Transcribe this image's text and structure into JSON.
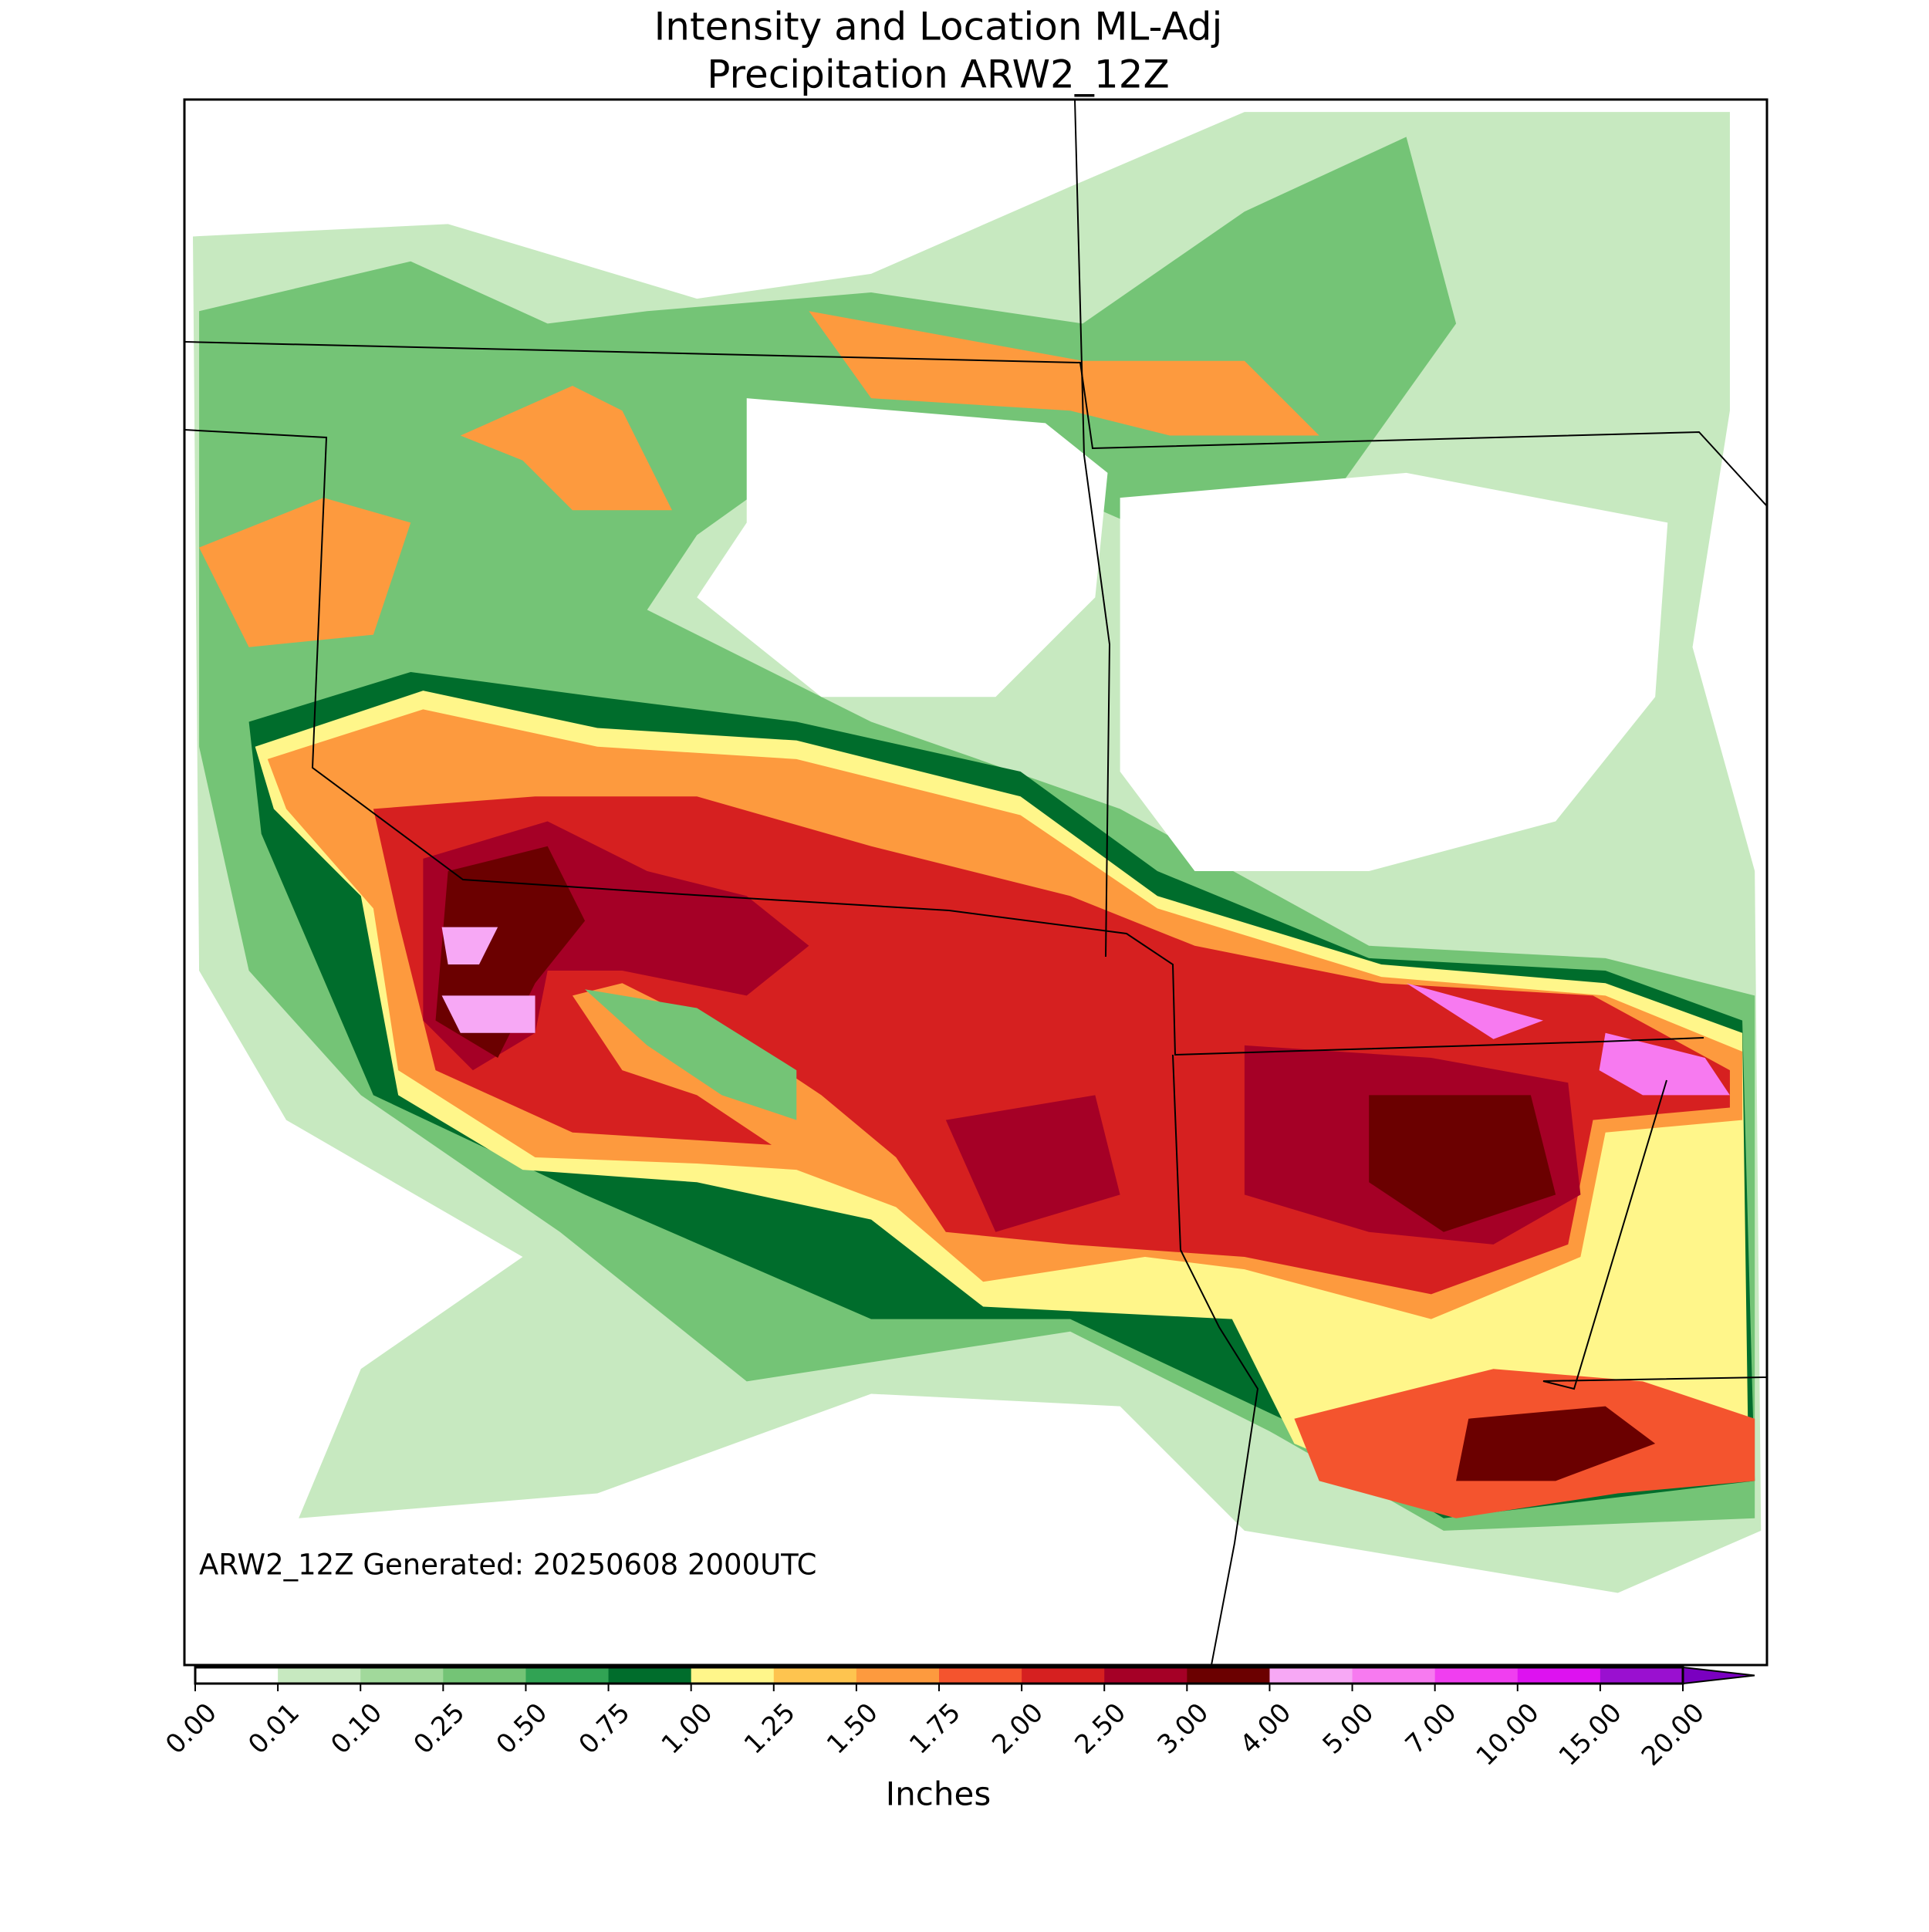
{
  "chart_data": {
    "type": "precip-map",
    "title": [
      "Intensity and Location ML-Adj",
      "Precipitation ARW2_12Z"
    ],
    "annotation": "ARW2_12Z Generated: 20250608 2000UTC",
    "colorbar": {
      "label": "Inches",
      "ticks": [
        {
          "value": 0,
          "label": "0.00"
        },
        {
          "value": 0.01,
          "label": "0.01"
        },
        {
          "value": 0.1,
          "label": "0.10"
        },
        {
          "value": 0.25,
          "label": "0.25"
        },
        {
          "value": 0.5,
          "label": "0.50"
        },
        {
          "value": 0.75,
          "label": "0.75"
        },
        {
          "value": 1,
          "label": "1.00"
        },
        {
          "value": 1.25,
          "label": "1.25"
        },
        {
          "value": 1.5,
          "label": "1.50"
        },
        {
          "value": 1.75,
          "label": "1.75"
        },
        {
          "value": 2,
          "label": "2.00"
        },
        {
          "value": 2.5,
          "label": "2.50"
        },
        {
          "value": 3,
          "label": "3.00"
        },
        {
          "value": 4,
          "label": "4.00"
        },
        {
          "value": 5,
          "label": "5.00"
        },
        {
          "value": 7,
          "label": "7.00"
        },
        {
          "value": 10,
          "label": "10.00"
        },
        {
          "value": 15,
          "label": "15.00"
        },
        {
          "value": 20,
          "label": "20.00"
        }
      ],
      "colors": [
        "#ffffff",
        "#c7e9c0",
        "#a1d99b",
        "#74c476",
        "#31a354",
        "#006d2c",
        "#fff68a",
        "#fec44f",
        "#fd9a3e",
        "#f4542e",
        "#d62020",
        "#a50026",
        "#6b0000",
        "#f7a8f5",
        "#f77af0",
        "#f03ef0",
        "#dd12f0",
        "#9a10d0"
      ],
      "extend_color": "#7a00c0"
    }
  }
}
